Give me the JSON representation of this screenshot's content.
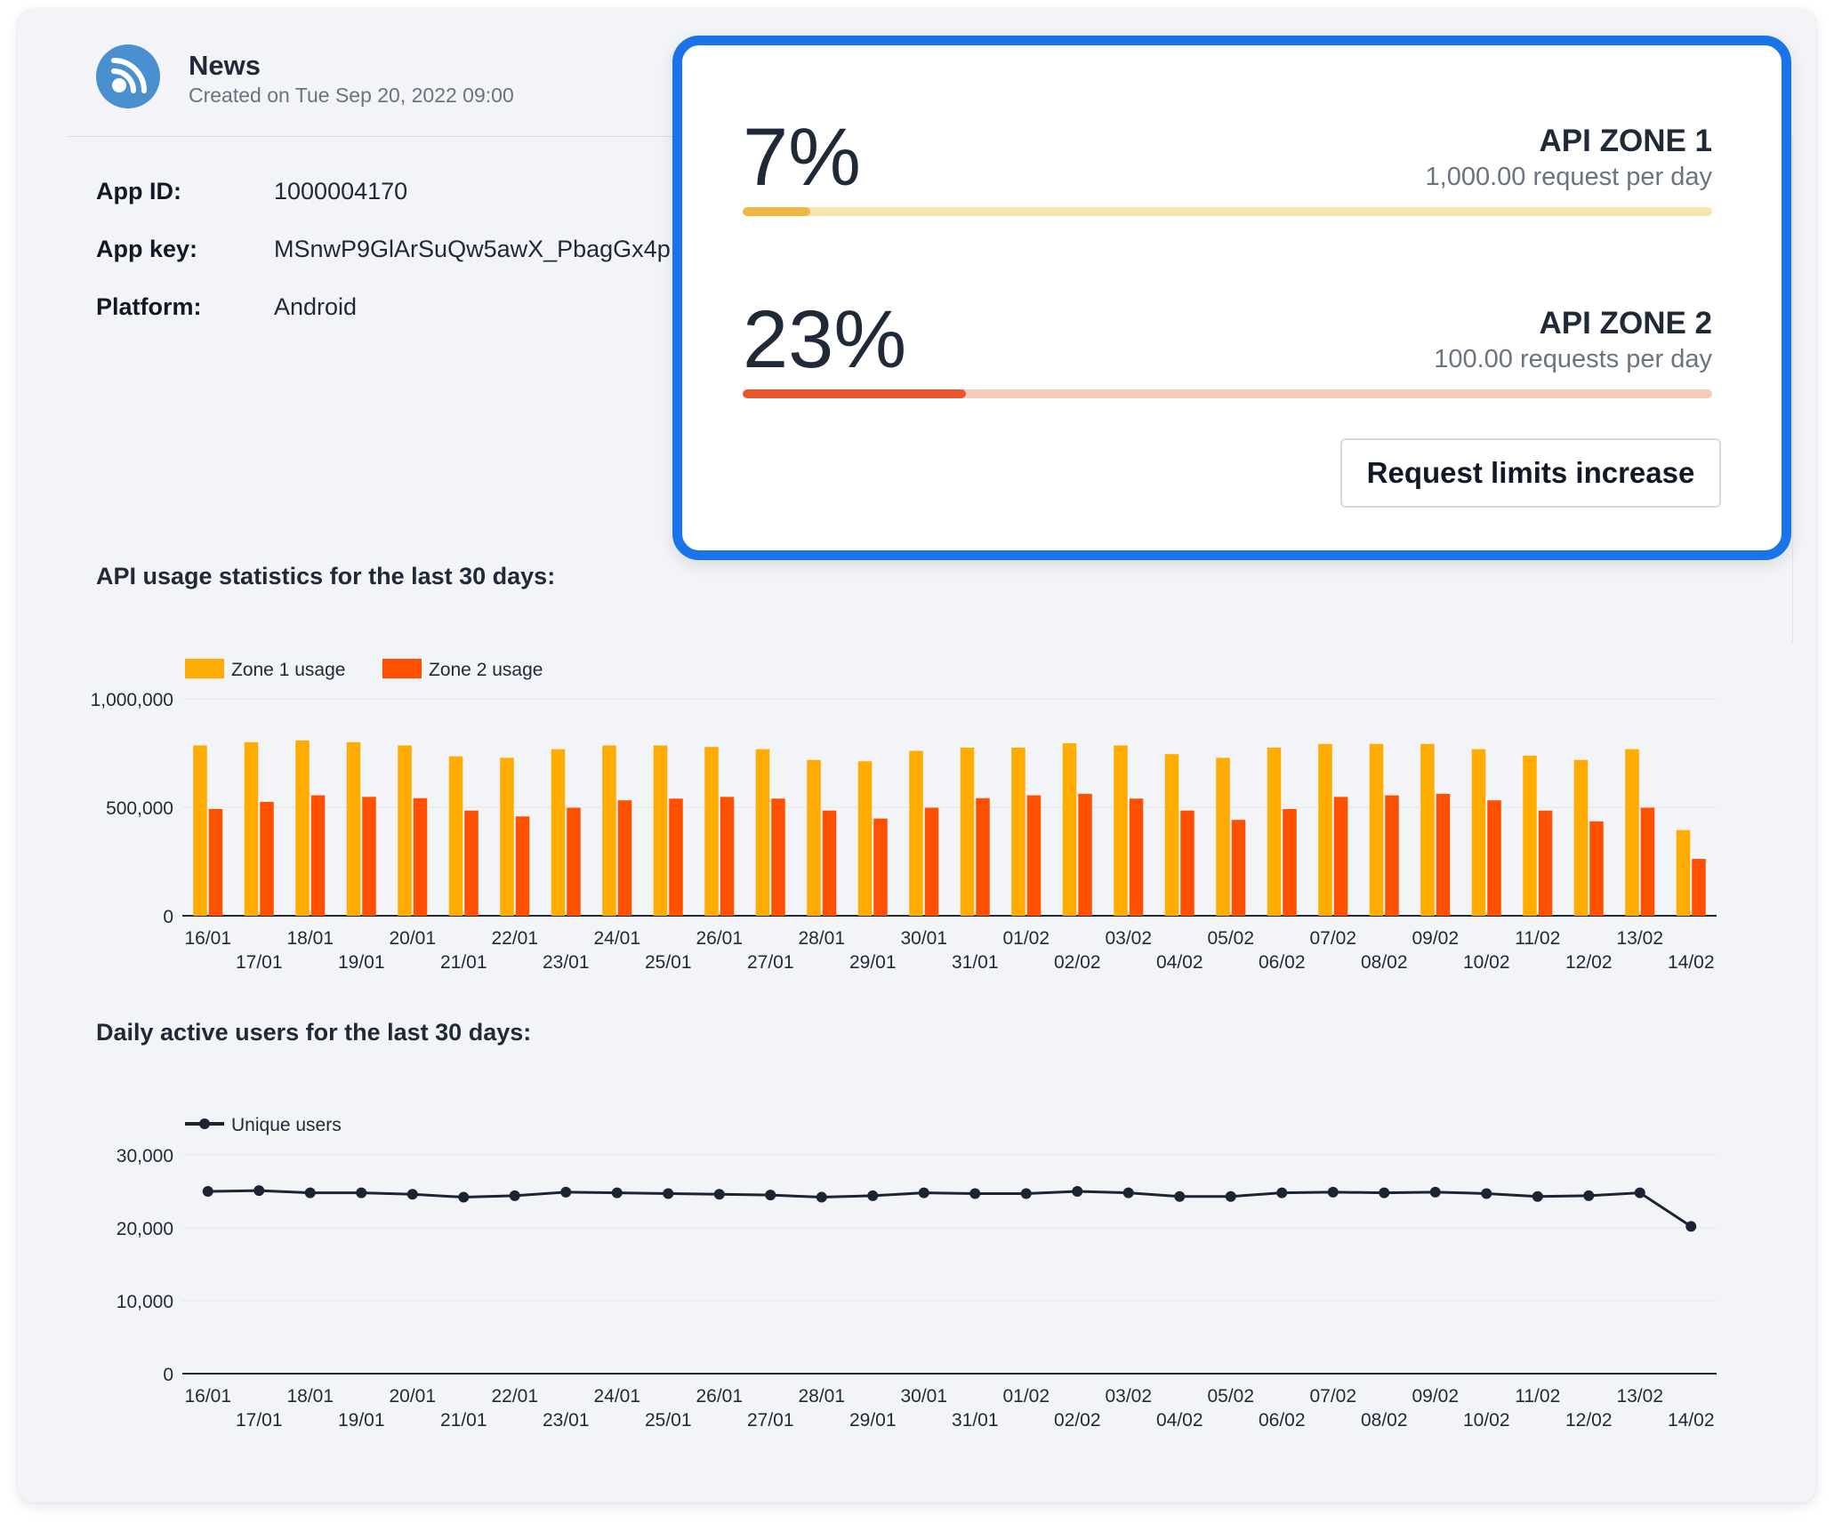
{
  "app": {
    "name": "News",
    "created": "Created on Tue Sep 20, 2022 09:00",
    "fields": [
      {
        "label": "App ID:",
        "value": "1000004170"
      },
      {
        "label": "App key:",
        "value": "MSnwP9GlArSuQw5awX_PbagGx4p"
      },
      {
        "label": "Platform:",
        "value": "Android"
      }
    ]
  },
  "zones": [
    {
      "percent_label": "7%",
      "percent": 7,
      "name": "API ZONE 1",
      "limit": "1,000.00 request per day",
      "color": "#f1b541",
      "track_color": "#f7e5ad"
    },
    {
      "percent_label": "23%",
      "percent": 23,
      "name": "API ZONE 2",
      "limit": "100.00 requests per day",
      "color": "#e8562f",
      "track_color": "#f6c9b8"
    }
  ],
  "request_button": "Request limits increase",
  "sections": {
    "usage_title": "API usage statistics for the last 30 days:",
    "users_title": "Daily active users for the last 30 days:"
  },
  "chart_data": [
    {
      "type": "bar",
      "categories": [
        "16/01",
        "17/01",
        "18/01",
        "19/01",
        "20/01",
        "21/01",
        "22/01",
        "23/01",
        "24/01",
        "25/01",
        "26/01",
        "27/01",
        "28/01",
        "29/01",
        "30/01",
        "31/01",
        "01/02",
        "02/02",
        "03/02",
        "04/02",
        "05/02",
        "06/02",
        "07/02",
        "08/02",
        "09/02",
        "10/02",
        "11/02",
        "12/02",
        "13/02",
        "14/02"
      ],
      "series": [
        {
          "name": "Zone 1 usage",
          "color": "#ffab00",
          "values": [
            785000,
            800000,
            808000,
            800000,
            785000,
            735000,
            728000,
            768000,
            785000,
            785000,
            778000,
            768000,
            718000,
            712000,
            760000,
            775000,
            775000,
            795000,
            785000,
            745000,
            728000,
            775000,
            792000,
            792000,
            792000,
            768000,
            738000,
            718000,
            768000,
            395000
          ]
        },
        {
          "name": "Zone 2 usage",
          "color": "#ff5000",
          "values": [
            492000,
            525000,
            555000,
            548000,
            542000,
            485000,
            458000,
            498000,
            532000,
            540000,
            548000,
            540000,
            485000,
            448000,
            498000,
            542000,
            555000,
            562000,
            540000,
            485000,
            442000,
            492000,
            548000,
            555000,
            562000,
            532000,
            485000,
            435000,
            498000,
            262000
          ]
        }
      ],
      "ylim": [
        0,
        1000000
      ],
      "yticks": [
        "0",
        "500,000",
        "1,000,000"
      ],
      "ytick_values": [
        0,
        500000,
        1000000
      ],
      "legend": "top-left",
      "grid": true
    },
    {
      "type": "line",
      "categories": [
        "16/01",
        "17/01",
        "18/01",
        "19/01",
        "20/01",
        "21/01",
        "22/01",
        "23/01",
        "24/01",
        "25/01",
        "26/01",
        "27/01",
        "28/01",
        "29/01",
        "30/01",
        "31/01",
        "01/02",
        "02/02",
        "03/02",
        "04/02",
        "05/02",
        "06/02",
        "07/02",
        "08/02",
        "09/02",
        "10/02",
        "11/02",
        "12/02",
        "13/02",
        "14/02"
      ],
      "series": [
        {
          "name": "Unique users",
          "color": "#1c2333",
          "values": [
            25000,
            25100,
            24800,
            24800,
            24600,
            24200,
            24400,
            24900,
            24800,
            24700,
            24600,
            24500,
            24200,
            24400,
            24800,
            24700,
            24700,
            25000,
            24800,
            24300,
            24300,
            24800,
            24900,
            24800,
            24900,
            24700,
            24300,
            24400,
            24800,
            20200
          ]
        }
      ],
      "ylim": [
        0,
        30000
      ],
      "yticks": [
        "0",
        "10,000",
        "20,000",
        "30,000"
      ],
      "ytick_values": [
        0,
        10000,
        20000,
        30000
      ],
      "legend": "top-left",
      "grid": true
    }
  ]
}
